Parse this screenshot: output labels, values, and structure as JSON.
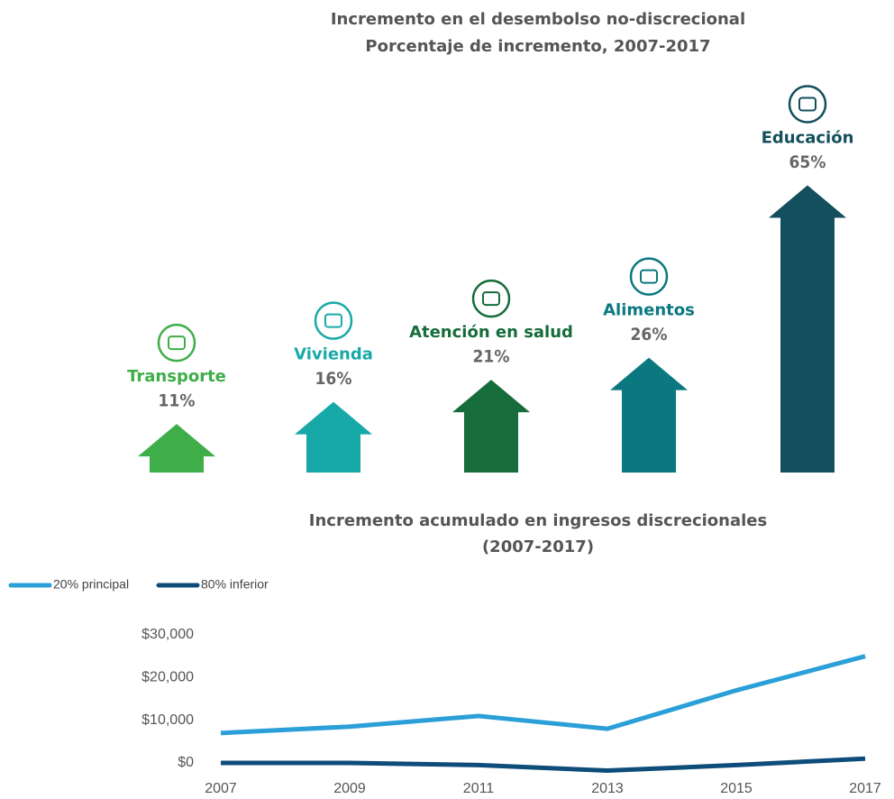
{
  "chart_data": [
    {
      "type": "arrow-bar",
      "title": "Incremento en el desembolso no-discrecional",
      "subtitle": "Porcentaje de incremento, 2007-2017",
      "categories": [
        "Transporte",
        "Vivienda",
        "Atención en salud",
        "Alimentos",
        "Educación"
      ],
      "values": [
        11,
        16,
        21,
        26,
        65
      ],
      "value_labels": [
        "11%",
        "16%",
        "21%",
        "26%",
        "65%"
      ],
      "colors": [
        "#3fae49",
        "#17a9a8",
        "#166c3a",
        "#0b7880",
        "#134f5c"
      ]
    },
    {
      "type": "line",
      "title": "Incremento acumulado en ingresos discrecionales",
      "subtitle": "(2007-2017)",
      "x": [
        2007,
        2009,
        2011,
        2013,
        2015,
        2017
      ],
      "xlim": [
        2007,
        2017
      ],
      "series": [
        {
          "name": "20% principal",
          "color": "#2a9fd8",
          "values": [
            7000,
            8500,
            11000,
            8000,
            17000,
            25000
          ]
        },
        {
          "name": "80% inferior",
          "color": "#0e4d7a",
          "values": [
            0,
            0,
            -500,
            -1800,
            -500,
            1000
          ]
        }
      ],
      "ylim": [
        -3000,
        30000
      ],
      "yticks": [
        {
          "value": 0,
          "label": "$0"
        },
        {
          "value": 10000,
          "label": "$10,000"
        },
        {
          "value": 20000,
          "label": "$20,000"
        },
        {
          "value": 30000,
          "label": "$30,000"
        }
      ],
      "grid": false,
      "legend": "top-left"
    }
  ]
}
